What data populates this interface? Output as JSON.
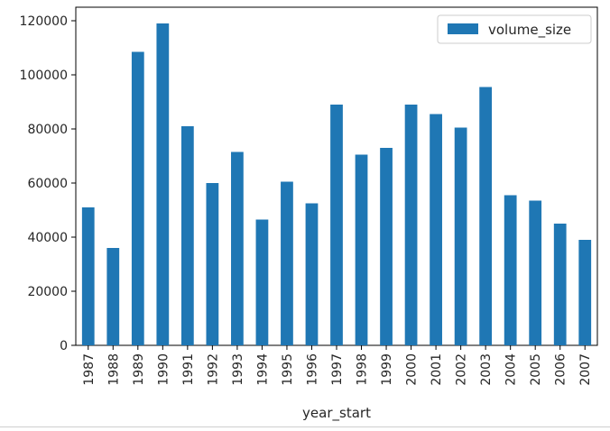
{
  "chart_data": {
    "type": "bar",
    "categories": [
      "1987",
      "1988",
      "1989",
      "1990",
      "1991",
      "1992",
      "1993",
      "1994",
      "1995",
      "1996",
      "1997",
      "1998",
      "1999",
      "2000",
      "2001",
      "2002",
      "2003",
      "2004",
      "2005",
      "2006",
      "2007"
    ],
    "series": [
      {
        "name": "volume_size",
        "color": "#1f77b4",
        "values": [
          51000,
          36000,
          108500,
          119000,
          81000,
          60000,
          71500,
          46500,
          60500,
          52500,
          89000,
          70500,
          73000,
          89000,
          85500,
          80500,
          95500,
          55500,
          53500,
          45000,
          39000
        ]
      }
    ],
    "title": "",
    "xlabel": "year_start",
    "ylabel": "",
    "ylim": [
      0,
      125000
    ],
    "yticks": [
      0,
      20000,
      40000,
      60000,
      80000,
      100000,
      120000
    ],
    "ytick_labels": [
      "0",
      "20000",
      "40000",
      "60000",
      "80000",
      "100000",
      "120000"
    ],
    "grid": false,
    "legend": {
      "position": "top-right",
      "entries": [
        "volume_size"
      ]
    }
  }
}
